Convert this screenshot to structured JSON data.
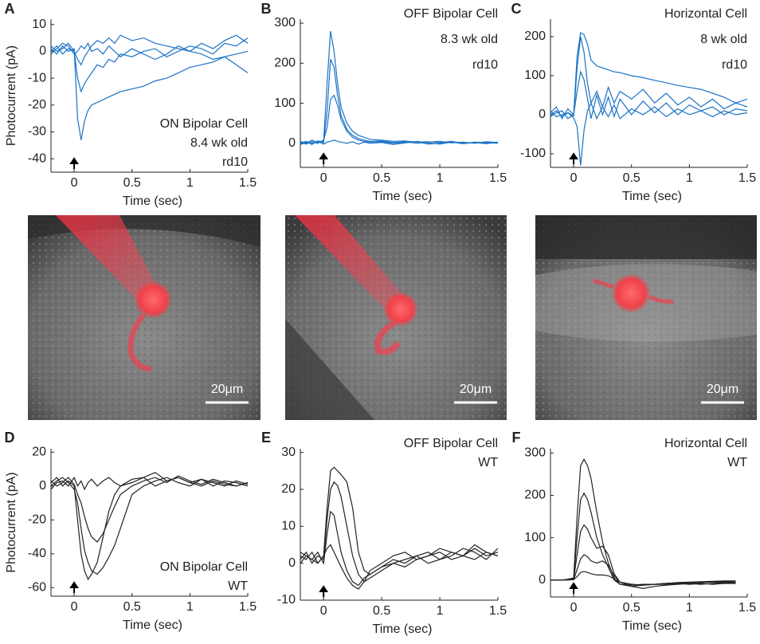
{
  "chart_data": [
    {
      "type": "line",
      "panel": "A",
      "ylabel": "Photocurrent (pA)",
      "xlabel": "Time (sec)",
      "annotation": [
        "ON Bipolar Cell",
        "8.4 wk old",
        "rd10"
      ],
      "color": "#1a72c6",
      "xlim": [
        -0.2,
        1.5
      ],
      "xticks": [
        0,
        0.5,
        1,
        1.5
      ],
      "ylim": [
        -45,
        12
      ],
      "yticks": [
        -40,
        -30,
        -20,
        -10,
        0,
        10
      ],
      "x": [
        -0.2,
        -0.15,
        -0.1,
        -0.05,
        0,
        0.03,
        0.06,
        0.09,
        0.12,
        0.15,
        0.2,
        0.25,
        0.3,
        0.35,
        0.4,
        0.5,
        0.6,
        0.7,
        0.8,
        0.9,
        1.0,
        1.1,
        1.2,
        1.3,
        1.4,
        1.5
      ],
      "series": [
        {
          "values": [
            1,
            -1,
            2,
            0,
            1,
            -25,
            -33,
            -26,
            -22,
            -20,
            -19,
            -18,
            -17,
            -16,
            -15,
            -14,
            -13,
            -11,
            -10,
            -8,
            -6,
            -5,
            -4,
            -2,
            -1,
            0
          ]
        },
        {
          "values": [
            0,
            2,
            -1,
            1,
            0,
            -10,
            -15,
            -12,
            -10,
            -8,
            -5,
            -6,
            -3,
            -4,
            -1,
            -2,
            0,
            1,
            -2,
            0,
            2,
            1,
            -1,
            3,
            2,
            5
          ]
        },
        {
          "values": [
            2,
            0,
            1,
            3,
            0,
            -3,
            -5,
            -2,
            0,
            2,
            4,
            3,
            5,
            3,
            6,
            4,
            5,
            3,
            2,
            1,
            0,
            -1,
            -3,
            -2,
            -5,
            -8
          ]
        },
        {
          "values": [
            -1,
            1,
            3,
            2,
            -1,
            0,
            2,
            1,
            3,
            0,
            1,
            -1,
            2,
            0,
            -2,
            1,
            -1,
            -3,
            -1,
            2,
            0,
            3,
            1,
            4,
            6,
            3
          ]
        }
      ]
    },
    {
      "type": "line",
      "panel": "B",
      "xlabel": "Time (sec)",
      "annotation": [
        "OFF Bipolar Cell",
        "8.3 wk old",
        "rd10"
      ],
      "color": "#1a72c6",
      "xlim": [
        -0.2,
        1.5
      ],
      "xticks": [
        0,
        0.5,
        1,
        1.5
      ],
      "ylim": [
        -60,
        310
      ],
      "yticks": [
        0,
        100,
        200,
        300
      ],
      "x": [
        -0.2,
        -0.15,
        -0.1,
        -0.05,
        0,
        0.03,
        0.06,
        0.09,
        0.12,
        0.15,
        0.2,
        0.25,
        0.3,
        0.35,
        0.4,
        0.5,
        0.6,
        0.7,
        0.8,
        0.9,
        1.0,
        1.1,
        1.2,
        1.3,
        1.4,
        1.5
      ],
      "series": [
        {
          "values": [
            5,
            0,
            8,
            2,
            5,
            150,
            280,
            230,
            150,
            90,
            50,
            30,
            20,
            15,
            10,
            8,
            5,
            6,
            3,
            4,
            2,
            5,
            0,
            3,
            2,
            0
          ]
        },
        {
          "values": [
            0,
            5,
            -3,
            6,
            2,
            80,
            210,
            190,
            120,
            70,
            35,
            20,
            12,
            8,
            5,
            6,
            2,
            4,
            0,
            3,
            5,
            1,
            3,
            0,
            4,
            2
          ]
        },
        {
          "values": [
            3,
            -2,
            4,
            0,
            8,
            40,
            110,
            120,
            95,
            60,
            30,
            15,
            8,
            5,
            3,
            4,
            0,
            2,
            5,
            1,
            -2,
            3,
            0,
            2,
            -1,
            3
          ]
        },
        {
          "values": [
            -3,
            2,
            0,
            5,
            -2,
            3,
            5,
            8,
            5,
            3,
            0,
            4,
            -2,
            3,
            0,
            2,
            -3,
            1,
            4,
            -2,
            0,
            3,
            -1,
            2,
            0,
            1
          ]
        }
      ]
    },
    {
      "type": "line",
      "panel": "C",
      "xlabel": "Time (sec)",
      "annotation": [
        "Horizontal Cell",
        "8 wk old",
        "rd10"
      ],
      "color": "#1a72c6",
      "xlim": [
        -0.2,
        1.5
      ],
      "xticks": [
        0,
        0.5,
        1,
        1.5
      ],
      "ylim": [
        -135,
        245
      ],
      "yticks": [
        -100,
        0,
        100,
        200
      ],
      "x": [
        -0.2,
        -0.15,
        -0.1,
        -0.05,
        0,
        0.03,
        0.06,
        0.09,
        0.12,
        0.15,
        0.2,
        0.25,
        0.3,
        0.35,
        0.4,
        0.5,
        0.6,
        0.7,
        0.8,
        0.9,
        1.0,
        1.1,
        1.2,
        1.3,
        1.4,
        1.5
      ],
      "series": [
        {
          "values": [
            5,
            20,
            -10,
            15,
            0,
            150,
            210,
            205,
            180,
            140,
            125,
            120,
            115,
            110,
            108,
            100,
            95,
            88,
            82,
            75,
            70,
            65,
            55,
            45,
            30,
            40
          ]
        },
        {
          "values": [
            0,
            10,
            -5,
            5,
            -3,
            120,
            200,
            160,
            80,
            30,
            60,
            20,
            70,
            30,
            60,
            40,
            65,
            30,
            55,
            25,
            45,
            20,
            40,
            15,
            30,
            20
          ]
        },
        {
          "values": [
            -5,
            5,
            10,
            -10,
            0,
            60,
            110,
            90,
            40,
            -10,
            50,
            0,
            45,
            -5,
            40,
            0,
            35,
            5,
            30,
            0,
            25,
            10,
            20,
            0,
            15,
            10
          ]
        },
        {
          "values": [
            10,
            -5,
            0,
            5,
            -8,
            -30,
            -130,
            -40,
            10,
            30,
            -10,
            20,
            -5,
            25,
            -10,
            15,
            0,
            20,
            -5,
            15,
            0,
            10,
            -5,
            10,
            0,
            5
          ]
        }
      ]
    },
    {
      "type": "line",
      "panel": "D",
      "ylabel": "Photocurrent (pA)",
      "xlabel": "Time (sec)",
      "annotation": [
        "ON Bipolar Cell",
        "WT"
      ],
      "color": "#222222",
      "xlim": [
        -0.2,
        1.5
      ],
      "xticks": [
        0,
        0.5,
        1,
        1.5
      ],
      "ylim": [
        -65,
        22
      ],
      "yticks": [
        -60,
        -40,
        -20,
        0,
        20
      ],
      "x": [
        -0.2,
        -0.15,
        -0.1,
        -0.05,
        0,
        0.03,
        0.06,
        0.09,
        0.12,
        0.15,
        0.2,
        0.25,
        0.3,
        0.35,
        0.4,
        0.5,
        0.6,
        0.7,
        0.8,
        0.9,
        1.0,
        1.1,
        1.2,
        1.3,
        1.4,
        1.5
      ],
      "series": [
        {
          "values": [
            2,
            5,
            0,
            3,
            0,
            -20,
            -40,
            -50,
            -55,
            -52,
            -45,
            -30,
            -15,
            -5,
            0,
            2,
            5,
            0,
            3,
            5,
            2,
            0,
            3,
            1,
            0,
            2
          ]
        },
        {
          "values": [
            0,
            3,
            5,
            2,
            -2,
            -10,
            -25,
            -38,
            -45,
            -50,
            -52,
            -48,
            -42,
            -35,
            -25,
            -5,
            0,
            3,
            5,
            2,
            0,
            4,
            2,
            0,
            3,
            1
          ]
        },
        {
          "values": [
            3,
            0,
            2,
            5,
            1,
            -5,
            -10,
            -18,
            -25,
            -30,
            -33,
            -28,
            -20,
            -12,
            -5,
            0,
            3,
            5,
            2,
            6,
            3,
            1,
            4,
            2,
            0,
            2
          ]
        },
        {
          "values": [
            -2,
            2,
            3,
            0,
            5,
            0,
            3,
            -2,
            2,
            4,
            0,
            3,
            5,
            2,
            0,
            4,
            5,
            8,
            3,
            5,
            2,
            4,
            0,
            3,
            2,
            0
          ]
        }
      ]
    },
    {
      "type": "line",
      "panel": "E",
      "xlabel": "Time (sec)",
      "annotation": [
        "OFF Bipolar Cell",
        "WT"
      ],
      "color": "#222222",
      "xlim": [
        -0.2,
        1.5
      ],
      "xticks": [
        0,
        0.5,
        1,
        1.5
      ],
      "ylim": [
        -10,
        31
      ],
      "yticks": [
        -10,
        0,
        10,
        20,
        30
      ],
      "x": [
        -0.2,
        -0.15,
        -0.1,
        -0.05,
        0,
        0.03,
        0.06,
        0.09,
        0.12,
        0.15,
        0.2,
        0.25,
        0.3,
        0.35,
        0.4,
        0.5,
        0.6,
        0.7,
        0.8,
        0.9,
        1.0,
        1.1,
        1.2,
        1.3,
        1.4,
        1.5
      ],
      "series": [
        {
          "values": [
            2,
            1,
            3,
            0,
            2,
            15,
            25,
            26,
            25,
            24,
            22,
            15,
            3,
            -2,
            -3,
            -1,
            0,
            1,
            2,
            0,
            1,
            3,
            2,
            1,
            3,
            2
          ]
        },
        {
          "values": [
            1,
            3,
            0,
            2,
            1,
            12,
            20,
            22,
            21,
            18,
            10,
            2,
            -3,
            -5,
            -4,
            -2,
            0,
            -1,
            1,
            2,
            3,
            1,
            2,
            4,
            2,
            3
          ]
        },
        {
          "values": [
            3,
            2,
            1,
            3,
            0,
            8,
            14,
            13,
            8,
            3,
            -2,
            -5,
            -6,
            -4,
            -3,
            -1,
            1,
            0,
            2,
            3,
            1,
            2,
            4,
            3,
            1,
            4
          ]
        },
        {
          "values": [
            0,
            2,
            1,
            0,
            2,
            4,
            5,
            3,
            1,
            -1,
            -4,
            -6,
            -7,
            -5,
            -2,
            0,
            2,
            3,
            1,
            2,
            4,
            3,
            2,
            5,
            3,
            2
          ]
        }
      ]
    },
    {
      "type": "line",
      "panel": "F",
      "xlabel": "Time (sec)",
      "annotation": [
        "Horizontal Cell",
        "WT"
      ],
      "color": "#222222",
      "xlim": [
        -0.2,
        1.5
      ],
      "xticks": [
        0,
        0.5,
        1,
        1.5
      ],
      "ylim": [
        -40,
        310
      ],
      "yticks": [
        0,
        100,
        200,
        300
      ],
      "x": [
        -0.2,
        -0.15,
        -0.1,
        -0.05,
        0,
        0.03,
        0.06,
        0.09,
        0.12,
        0.15,
        0.2,
        0.25,
        0.3,
        0.35,
        0.4,
        0.5,
        0.6,
        0.7,
        0.8,
        0.9,
        1.0,
        1.1,
        1.2,
        1.3,
        1.4,
        1.5
      ],
      "series": [
        {
          "values": [
            0,
            0,
            0,
            2,
            5,
            150,
            270,
            285,
            270,
            240,
            160,
            90,
            40,
            5,
            -10,
            -15,
            -12,
            -10,
            -10,
            -8,
            -10,
            -8,
            -10,
            -8,
            -8,
            null
          ]
        },
        {
          "values": [
            0,
            0,
            0,
            1,
            3,
            100,
            190,
            205,
            190,
            160,
            100,
            60,
            30,
            0,
            -10,
            -12,
            -10,
            -10,
            -8,
            -8,
            -8,
            -10,
            -8,
            -6,
            -8,
            null
          ]
        },
        {
          "values": [
            0,
            0,
            0,
            1,
            2,
            60,
            115,
            130,
            120,
            100,
            75,
            80,
            60,
            15,
            -5,
            -15,
            -20,
            -15,
            -12,
            -10,
            -8,
            -6,
            -5,
            -5,
            -6,
            null
          ]
        },
        {
          "values": [
            0,
            0,
            0,
            0,
            1,
            25,
            50,
            60,
            55,
            45,
            40,
            45,
            35,
            10,
            -5,
            -10,
            -12,
            -10,
            -8,
            -8,
            -6,
            -5,
            -4,
            -3,
            -4,
            null
          ]
        },
        {
          "values": [
            0,
            0,
            0,
            0,
            1,
            8,
            18,
            20,
            18,
            15,
            12,
            12,
            10,
            3,
            -5,
            -10,
            -12,
            -10,
            -8,
            -6,
            -5,
            -4,
            -3,
            -2,
            -2,
            null
          ]
        }
      ]
    }
  ],
  "images": [
    {
      "scale_bar": "20μm"
    },
    {
      "scale_bar": "20μm"
    },
    {
      "scale_bar": "20μm"
    }
  ]
}
